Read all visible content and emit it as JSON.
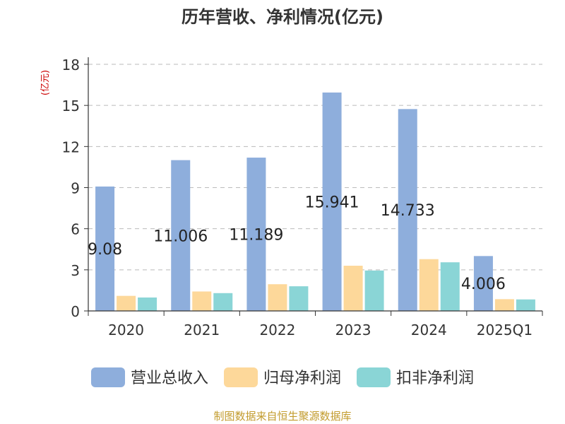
{
  "chart_data": {
    "type": "bar",
    "title": "历年营收、净利情况(亿元)",
    "ylabel": "(亿元)",
    "xlabel": "",
    "categories": [
      "2020",
      "2021",
      "2022",
      "2023",
      "2024",
      "2025Q1"
    ],
    "ylim": [
      0,
      18
    ],
    "yticks": [
      0,
      3,
      6,
      9,
      12,
      15,
      18
    ],
    "grid": true,
    "legend_position": "bottom",
    "series": [
      {
        "name": "营业总收入",
        "color": "#8eaedc",
        "values": [
          9.08,
          11.006,
          11.189,
          15.941,
          14.733,
          4.006
        ],
        "labels": [
          "9.08",
          "11.006",
          "11.189",
          "15.941",
          "14.733",
          "4.006"
        ]
      },
      {
        "name": "归母净利润",
        "color": "#fdd89a",
        "values": [
          1.1,
          1.42,
          1.95,
          3.3,
          3.78,
          0.86
        ]
      },
      {
        "name": "扣非净利润",
        "color": "#8ad5d6",
        "values": [
          0.98,
          1.3,
          1.8,
          2.95,
          3.55,
          0.84
        ]
      }
    ]
  },
  "footer": {
    "source": "制图数据来自恒生聚源数据库"
  },
  "colors": {
    "axis": "#333333",
    "grid": "#bbbbbb",
    "ylabel": "#cc0000",
    "source": "#c29b2c"
  }
}
